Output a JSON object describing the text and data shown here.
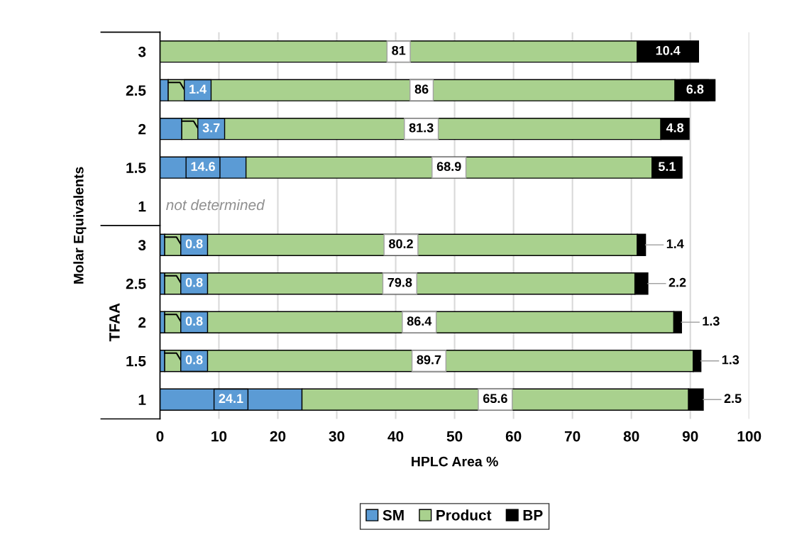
{
  "chart_data": {
    "type": "bar",
    "orientation": "horizontal",
    "stacked": true,
    "xlabel": "HPLC Area %",
    "ylabel": "Molar Equivalents",
    "categories": [
      "3",
      "2.5",
      "2",
      "1.5",
      "1",
      "3",
      "2.5",
      "2",
      "1.5",
      "1"
    ],
    "series": [
      {
        "name": "SM",
        "color": "#5b9bd5",
        "values": [
          null,
          1.4,
          3.7,
          14.6,
          null,
          0.8,
          0.8,
          0.8,
          0.8,
          24.1
        ]
      },
      {
        "name": "Product",
        "color": "#a9d18e",
        "values": [
          81,
          86,
          81.3,
          68.9,
          null,
          80.2,
          79.8,
          86.4,
          89.7,
          65.6
        ]
      },
      {
        "name": "BP",
        "color": "#000000",
        "values": [
          10.4,
          6.8,
          4.8,
          5.1,
          null,
          1.4,
          2.2,
          1.3,
          1.3,
          2.5
        ]
      }
    ],
    "data_labels": true,
    "annotations": [
      "not determined",
      "TFAA"
    ],
    "xlim": [
      0,
      100
    ],
    "xticks": [
      0,
      10,
      20,
      30,
      40,
      50,
      60,
      70,
      80,
      90,
      100
    ],
    "grid": "x",
    "legend": "bottom"
  }
}
